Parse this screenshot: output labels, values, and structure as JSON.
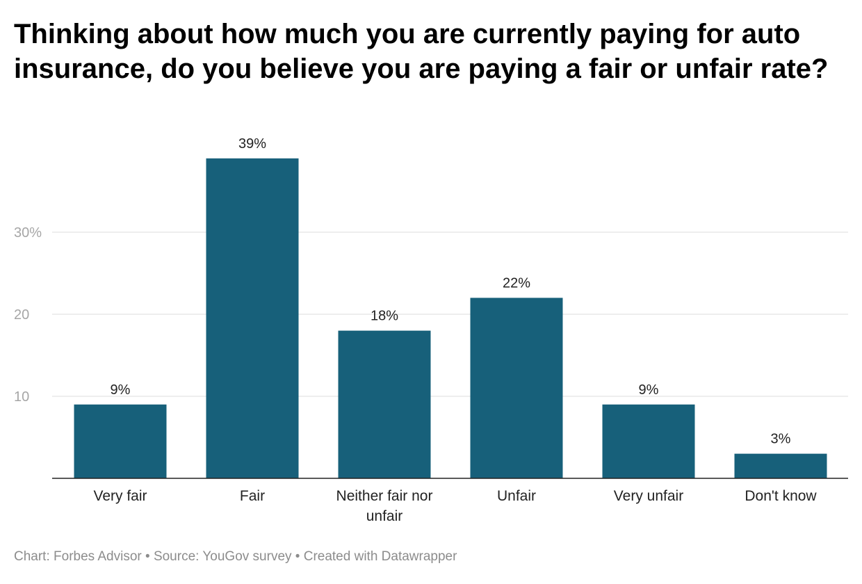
{
  "chart_data": {
    "type": "bar",
    "title": "Thinking about how much you are currently paying for auto insurance, do you believe you are paying a fair or unfair rate?",
    "categories": [
      "Very fair",
      "Fair",
      "Neither fair nor unfair",
      "Unfair",
      "Very unfair",
      "Don't know"
    ],
    "values": [
      9,
      39,
      18,
      22,
      9,
      3
    ],
    "data_labels": [
      "9%",
      "39%",
      "18%",
      "22%",
      "9%",
      "3%"
    ],
    "yticks": [
      {
        "value": 10,
        "label": "10"
      },
      {
        "value": 20,
        "label": "20"
      },
      {
        "value": 30,
        "label": "30%"
      }
    ],
    "ylim": [
      0,
      40
    ],
    "xlabel": "",
    "ylabel": "",
    "grid": true,
    "bar_color": "#17607a"
  },
  "footer": "Chart: Forbes Advisor • Source: YouGov survey • Created with Datawrapper"
}
